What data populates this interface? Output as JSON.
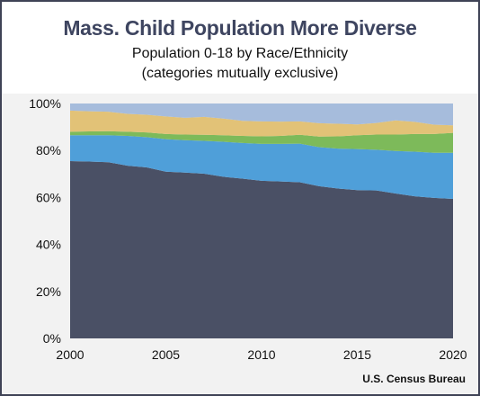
{
  "chart_data": {
    "type": "area",
    "stacked": true,
    "title": "Mass. Child Population More Diverse",
    "subtitle_lines": [
      "Population 0-18 by Race/Ethnicity",
      "(categories mutually exclusive)"
    ],
    "source": "U.S. Census Bureau",
    "x": [
      2000,
      2001,
      2002,
      2003,
      2004,
      2005,
      2006,
      2007,
      2008,
      2009,
      2010,
      2011,
      2012,
      2013,
      2014,
      2015,
      2016,
      2017,
      2018,
      2019,
      2020
    ],
    "xlim": [
      2000,
      2020
    ],
    "ylim": [
      0,
      100
    ],
    "x_ticks": [
      2000,
      2005,
      2010,
      2015,
      2020
    ],
    "y_ticks": [
      0,
      20,
      40,
      60,
      80,
      100
    ],
    "y_tick_labels": [
      "0%",
      "20%",
      "40%",
      "60%",
      "80%",
      "100%"
    ],
    "grid": false,
    "legend": "none",
    "series": [
      {
        "color": "#4a5065",
        "values": [
          75.5,
          75.3,
          75.0,
          73.5,
          72.8,
          71.0,
          70.6,
          70.1,
          68.8,
          68.0,
          67.1,
          66.8,
          66.5,
          64.8,
          63.8,
          63.1,
          63.0,
          61.7,
          60.5,
          59.8,
          59.4
        ]
      },
      {
        "color": "#4f9fd9",
        "values": [
          11.0,
          11.2,
          11.5,
          12.7,
          12.9,
          13.8,
          13.8,
          14.0,
          14.9,
          15.2,
          15.7,
          16.0,
          16.4,
          16.6,
          17.0,
          17.5,
          17.3,
          18.1,
          19.0,
          19.2,
          19.6
        ]
      },
      {
        "color": "#7dba5a",
        "values": [
          1.5,
          1.6,
          1.7,
          1.8,
          2.0,
          2.2,
          2.4,
          2.6,
          2.8,
          3.0,
          3.2,
          3.4,
          3.8,
          4.5,
          5.2,
          5.9,
          6.5,
          7.0,
          7.5,
          8.0,
          8.5
        ]
      },
      {
        "color": "#e2c277",
        "values": [
          9.0,
          8.6,
          8.3,
          7.6,
          7.5,
          7.5,
          7.1,
          7.6,
          7.1,
          6.4,
          6.4,
          6.1,
          5.7,
          5.7,
          5.4,
          4.6,
          4.9,
          6.0,
          5.2,
          4.0,
          3.2
        ]
      },
      {
        "color": "#a6bcdc",
        "values": [
          3.0,
          3.3,
          3.5,
          4.4,
          4.8,
          5.5,
          6.1,
          5.7,
          6.4,
          7.4,
          7.6,
          7.7,
          7.6,
          8.4,
          8.6,
          8.9,
          8.3,
          7.2,
          7.8,
          9.0,
          9.3
        ]
      }
    ]
  }
}
